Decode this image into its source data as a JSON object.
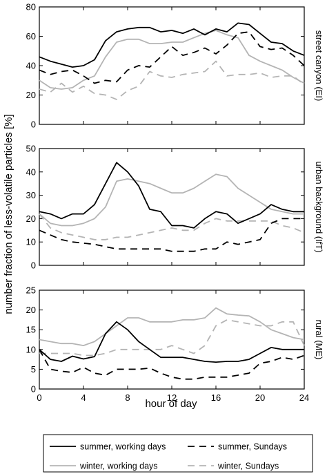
{
  "chart_data": [
    {
      "type": "line",
      "side_label": "street canyon (EI)",
      "ylim": [
        0,
        80
      ],
      "yticks": [
        0,
        20,
        40,
        60,
        80
      ],
      "x": [
        0,
        1,
        2,
        3,
        4,
        5,
        6,
        7,
        8,
        9,
        10,
        11,
        12,
        13,
        14,
        15,
        16,
        17,
        18,
        19,
        20,
        21,
        22,
        23,
        24
      ],
      "series": [
        {
          "name": "summer, working days",
          "style": "s-work",
          "values": [
            46,
            43,
            41,
            39,
            40,
            44,
            57,
            63,
            65,
            66,
            66,
            63,
            64,
            62,
            65,
            61,
            65,
            63,
            69,
            68,
            62,
            56,
            55,
            50,
            47
          ]
        },
        {
          "name": "summer, Sundays",
          "style": "s-sun",
          "values": [
            37,
            34,
            36,
            37,
            33,
            28,
            30,
            29,
            37,
            40,
            39,
            46,
            53,
            47,
            49,
            52,
            48,
            54,
            62,
            63,
            53,
            51,
            52,
            47,
            40
          ]
        },
        {
          "name": "winter, working days",
          "style": "w-work",
          "values": [
            30,
            25,
            24,
            25,
            30,
            33,
            46,
            56,
            58,
            58,
            55,
            55,
            56,
            56,
            59,
            62,
            64,
            61,
            59,
            47,
            43,
            40,
            37,
            32,
            28
          ]
        },
        {
          "name": "winter, Sundays",
          "style": "w-sun",
          "values": [
            24,
            22,
            28,
            22,
            26,
            21,
            20,
            17,
            23,
            26,
            36,
            33,
            32,
            34,
            35,
            36,
            43,
            33,
            34,
            34,
            35,
            32,
            33,
            33,
            27
          ]
        }
      ]
    },
    {
      "type": "line",
      "side_label": "urban background (IfT)",
      "ylim": [
        0,
        50
      ],
      "yticks": [
        0,
        10,
        20,
        30,
        40,
        50
      ],
      "x": [
        0,
        1,
        2,
        3,
        4,
        5,
        6,
        7,
        8,
        9,
        10,
        11,
        12,
        13,
        14,
        15,
        16,
        17,
        18,
        19,
        20,
        21,
        22,
        23,
        24
      ],
      "series": [
        {
          "name": "summer, working days",
          "style": "s-work",
          "values": [
            23,
            22,
            20,
            22,
            22,
            26,
            35,
            44,
            40,
            34,
            24,
            23,
            17,
            17,
            16,
            20,
            23,
            22,
            18,
            20,
            22,
            26,
            24,
            23,
            23
          ]
        },
        {
          "name": "summer, Sundays",
          "style": "s-sun",
          "values": [
            15,
            13,
            11,
            10,
            9.5,
            9,
            8,
            7,
            7,
            7,
            7,
            7,
            6,
            6,
            6,
            7,
            7,
            10,
            9,
            10,
            11,
            18,
            20,
            20,
            20
          ]
        },
        {
          "name": "winter, working days",
          "style": "w-work",
          "values": [
            22,
            18,
            17,
            17,
            18,
            20,
            25,
            36,
            37,
            36,
            35,
            33,
            31,
            31,
            33,
            36,
            39,
            38,
            33,
            30,
            27,
            24,
            23,
            22,
            22
          ]
        },
        {
          "name": "winter, Sundays",
          "style": "w-sun",
          "values": [
            22,
            16,
            14,
            13,
            12,
            11,
            11,
            12,
            12,
            13,
            14,
            15,
            16,
            15,
            15,
            18,
            20,
            19,
            19,
            19,
            19,
            19,
            17,
            16,
            14
          ]
        }
      ]
    },
    {
      "type": "line",
      "side_label": "rural (ME)",
      "ylim": [
        0,
        25
      ],
      "yticks": [
        0,
        5,
        10,
        15,
        20,
        25
      ],
      "x": [
        0,
        1,
        2,
        3,
        4,
        5,
        6,
        7,
        8,
        9,
        10,
        11,
        12,
        13,
        14,
        15,
        16,
        17,
        18,
        19,
        20,
        21,
        22,
        23,
        24
      ],
      "series": [
        {
          "name": "summer, working days",
          "style": "s-work",
          "values": [
            10,
            7.5,
            7,
            8.3,
            7.6,
            8.2,
            14,
            17,
            15,
            12,
            10,
            8,
            8,
            8,
            7.5,
            7,
            6.8,
            7,
            7,
            7.5,
            9,
            10.5,
            10,
            10,
            10
          ]
        },
        {
          "name": "summer, Sundays",
          "style": "s-sun",
          "values": [
            10,
            5,
            4.5,
            4.2,
            5.5,
            4,
            3.5,
            5,
            5,
            5,
            5.3,
            4,
            3,
            2.5,
            2.5,
            3,
            3,
            3,
            3.5,
            4,
            6.5,
            7,
            8,
            7.5,
            8.5
          ]
        },
        {
          "name": "winter, working days",
          "style": "w-work",
          "values": [
            12.5,
            12,
            11.5,
            11.5,
            11,
            12,
            14,
            16,
            18,
            18,
            17,
            17,
            17,
            17.5,
            17.5,
            18,
            20.5,
            19,
            18.7,
            18.5,
            17,
            15,
            14,
            13,
            12.5
          ]
        },
        {
          "name": "winter, Sundays",
          "style": "w-sun",
          "values": [
            9,
            9,
            9,
            9,
            8.5,
            8.5,
            9,
            10,
            10,
            10,
            10,
            10,
            11,
            10,
            9,
            11,
            16,
            17.5,
            17,
            16.5,
            16,
            16,
            17,
            17,
            11
          ]
        }
      ]
    }
  ],
  "axes": {
    "ylabel": "number fraction of less-volatile particles [%]",
    "xlabel": "hour of day",
    "xticks": [
      0,
      4,
      8,
      12,
      16,
      20,
      24
    ],
    "xlim": [
      0,
      24
    ]
  },
  "legend": {
    "placement": "bottom",
    "items": [
      {
        "label": "summer, working days",
        "style": "s-work"
      },
      {
        "label": "summer, Sundays",
        "style": "s-sun"
      },
      {
        "label": "winter, working days",
        "style": "w-work"
      },
      {
        "label": "winter, Sundays",
        "style": "w-sun"
      }
    ]
  },
  "styles": {
    "s-work": {
      "color": "#000000",
      "dash": ""
    },
    "s-sun": {
      "color": "#000000",
      "dash": "10,7"
    },
    "w-work": {
      "color": "#b4b4b4",
      "dash": ""
    },
    "w-sun": {
      "color": "#b4b4b4",
      "dash": "10,7"
    }
  }
}
